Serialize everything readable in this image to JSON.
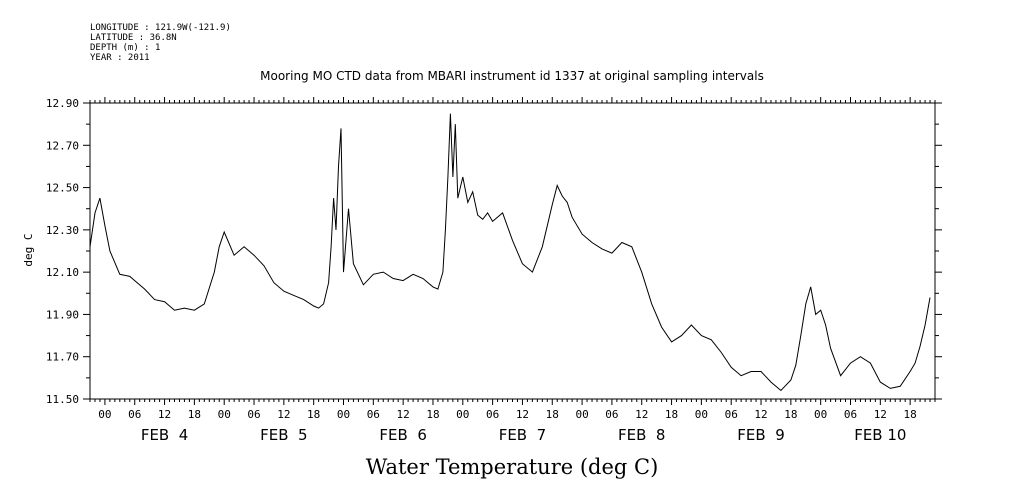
{
  "header": {
    "longitude": "LONGITUDE : 121.9W(-121.9)",
    "latitude": "LATITUDE : 36.8N",
    "depth": "DEPTH (m) : 1",
    "year": "YEAR : 2011"
  },
  "chart_data": {
    "type": "line",
    "title": "Mooring MO CTD data from MBARI instrument id 1337 at original sampling intervals",
    "xlabel": "Water Temperature (deg C)",
    "ylabel": "deg C",
    "ylim": [
      11.5,
      12.9
    ],
    "xlim": [
      "2011-02-03T21:00",
      "2011-02-10T23:00"
    ],
    "ytick_labels": [
      "11.50",
      "11.70",
      "11.90",
      "12.10",
      "12.30",
      "12.50",
      "12.70",
      "12.90"
    ],
    "hour_tick_labels": [
      "00",
      "06",
      "12",
      "18"
    ],
    "day_labels": [
      "FEB  4",
      "FEB  5",
      "FEB  6",
      "FEB  7",
      "FEB  8",
      "FEB  9",
      "FEB 10"
    ],
    "grid": false,
    "color": "#000000",
    "series": [
      {
        "x": [
          "2011-02-03T21:00",
          "2011-02-03T22:00",
          "2011-02-03T23:00",
          "2011-02-04T00:00",
          "2011-02-04T01:00",
          "2011-02-04T03:00",
          "2011-02-04T05:00",
          "2011-02-04T06:00",
          "2011-02-04T08:00",
          "2011-02-04T10:00",
          "2011-02-04T12:00",
          "2011-02-04T14:00",
          "2011-02-04T16:00",
          "2011-02-04T18:00",
          "2011-02-04T20:00",
          "2011-02-04T22:00",
          "2011-02-04T23:00",
          "2011-02-05T00:00",
          "2011-02-05T02:00",
          "2011-02-05T04:00",
          "2011-02-05T06:00",
          "2011-02-05T08:00",
          "2011-02-05T10:00",
          "2011-02-05T12:00",
          "2011-02-05T14:00",
          "2011-02-05T16:00",
          "2011-02-05T18:00",
          "2011-02-05T19:00",
          "2011-02-05T20:00",
          "2011-02-05T21:00",
          "2011-02-05T21:30",
          "2011-02-05T22:00",
          "2011-02-05T22:30",
          "2011-02-05T23:00",
          "2011-02-05T23:30",
          "2011-02-06T00:00",
          "2011-02-06T01:00",
          "2011-02-06T02:00",
          "2011-02-06T04:00",
          "2011-02-06T06:00",
          "2011-02-06T08:00",
          "2011-02-06T10:00",
          "2011-02-06T12:00",
          "2011-02-06T14:00",
          "2011-02-06T16:00",
          "2011-02-06T17:00",
          "2011-02-06T18:00",
          "2011-02-06T19:00",
          "2011-02-06T20:00",
          "2011-02-06T20:30",
          "2011-02-06T21:00",
          "2011-02-06T21:30",
          "2011-02-06T22:00",
          "2011-02-06T22:30",
          "2011-02-06T23:00",
          "2011-02-07T00:00",
          "2011-02-07T01:00",
          "2011-02-07T02:00",
          "2011-02-07T03:00",
          "2011-02-07T04:00",
          "2011-02-07T05:00",
          "2011-02-07T06:00",
          "2011-02-07T08:00",
          "2011-02-07T10:00",
          "2011-02-07T12:00",
          "2011-02-07T14:00",
          "2011-02-07T16:00",
          "2011-02-07T18:00",
          "2011-02-07T19:00",
          "2011-02-07T20:00",
          "2011-02-07T21:00",
          "2011-02-07T22:00",
          "2011-02-08T00:00",
          "2011-02-08T02:00",
          "2011-02-08T04:00",
          "2011-02-08T06:00",
          "2011-02-08T08:00",
          "2011-02-08T10:00",
          "2011-02-08T12:00",
          "2011-02-08T14:00",
          "2011-02-08T16:00",
          "2011-02-08T18:00",
          "2011-02-08T20:00",
          "2011-02-08T22:00",
          "2011-02-09T00:00",
          "2011-02-09T02:00",
          "2011-02-09T04:00",
          "2011-02-09T06:00",
          "2011-02-09T08:00",
          "2011-02-09T10:00",
          "2011-02-09T12:00",
          "2011-02-09T14:00",
          "2011-02-09T16:00",
          "2011-02-09T18:00",
          "2011-02-09T19:00",
          "2011-02-09T20:00",
          "2011-02-09T21:00",
          "2011-02-09T22:00",
          "2011-02-09T23:00",
          "2011-02-10T00:00",
          "2011-02-10T01:00",
          "2011-02-10T02:00",
          "2011-02-10T04:00",
          "2011-02-10T06:00",
          "2011-02-10T08:00",
          "2011-02-10T10:00",
          "2011-02-10T12:00",
          "2011-02-10T14:00",
          "2011-02-10T16:00",
          "2011-02-10T18:00",
          "2011-02-10T19:00",
          "2011-02-10T20:00",
          "2011-02-10T21:00",
          "2011-02-10T22:00"
        ],
        "y": [
          12.22,
          12.38,
          12.45,
          12.32,
          12.2,
          12.09,
          12.08,
          12.06,
          12.02,
          11.97,
          11.96,
          11.92,
          11.93,
          11.92,
          11.95,
          12.1,
          12.22,
          12.29,
          12.18,
          12.22,
          12.18,
          12.13,
          12.05,
          12.01,
          11.99,
          11.97,
          11.94,
          11.93,
          11.95,
          12.05,
          12.22,
          12.45,
          12.3,
          12.6,
          12.78,
          12.1,
          12.4,
          12.14,
          12.04,
          12.09,
          12.1,
          12.07,
          12.06,
          12.09,
          12.07,
          12.05,
          12.03,
          12.02,
          12.1,
          12.3,
          12.55,
          12.85,
          12.55,
          12.8,
          12.45,
          12.55,
          12.43,
          12.48,
          12.37,
          12.35,
          12.38,
          12.34,
          12.38,
          12.25,
          12.14,
          12.1,
          12.22,
          12.42,
          12.51,
          12.46,
          12.43,
          12.36,
          12.28,
          12.24,
          12.21,
          12.19,
          12.24,
          12.22,
          12.1,
          11.95,
          11.84,
          11.77,
          11.8,
          11.85,
          11.8,
          11.78,
          11.72,
          11.65,
          11.61,
          11.63,
          11.63,
          11.58,
          11.54,
          11.59,
          11.66,
          11.8,
          11.95,
          12.03,
          11.9,
          11.92,
          11.85,
          11.74,
          11.61,
          11.67,
          11.7,
          11.67,
          11.58,
          11.55,
          11.56,
          11.63,
          11.67,
          11.75,
          11.85,
          11.98
        ]
      }
    ]
  }
}
